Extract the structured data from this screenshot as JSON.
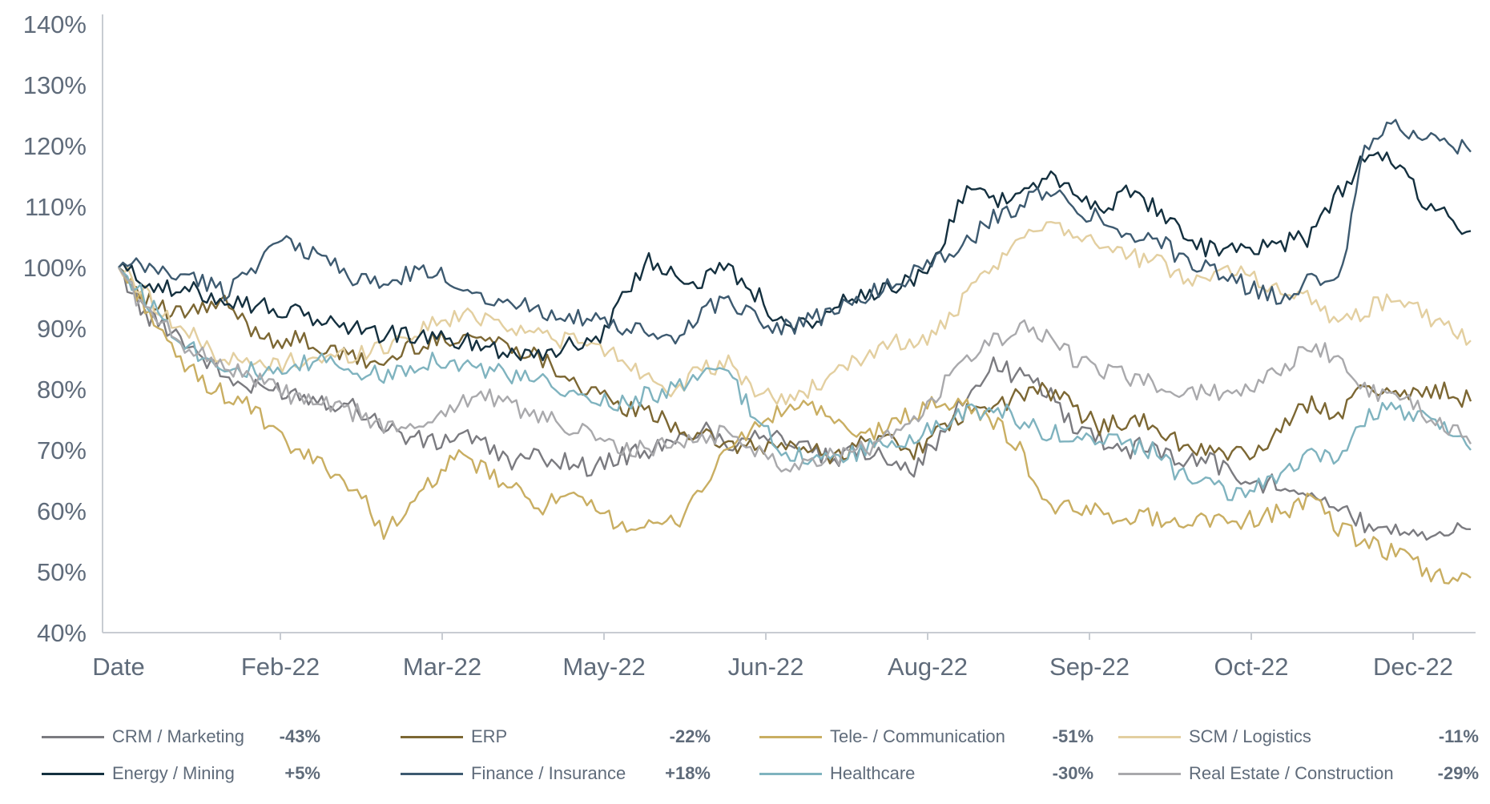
{
  "chart_data": {
    "type": "line",
    "title": "",
    "xlabel": "",
    "ylabel": "",
    "ylim": [
      40,
      140
    ],
    "yticks": [
      "40%",
      "50%",
      "60%",
      "70%",
      "80%",
      "90%",
      "100%",
      "110%",
      "120%",
      "130%",
      "140%"
    ],
    "xtick_labels": [
      "Date",
      "Feb-22",
      "Mar-22",
      "May-22",
      "Jun-22",
      "Aug-22",
      "Sep-22",
      "Oct-22",
      "Dec-22"
    ],
    "grid": false,
    "legend_position": "bottom",
    "series": [
      {
        "name": "CRM / Marketing",
        "change": "-43%",
        "color": "#7b7b80",
        "values": [
          100,
          92,
          90,
          86,
          82,
          80,
          80,
          79,
          78,
          77,
          74,
          72,
          71,
          73,
          70,
          68,
          69,
          68,
          67,
          69,
          70,
          71,
          74,
          71,
          73,
          72,
          70,
          68,
          70,
          69,
          67,
          72,
          79,
          84,
          82,
          80,
          74,
          72,
          70,
          71,
          68,
          69,
          66,
          64,
          65,
          63,
          60,
          58,
          57,
          57,
          56,
          57
        ]
      },
      {
        "name": "ERP",
        "change": "-22%",
        "color": "#7c6733",
        "values": [
          100,
          95,
          92,
          93,
          94,
          90,
          88,
          88,
          86,
          85,
          84,
          87,
          88,
          89,
          88,
          87,
          85,
          82,
          79,
          77,
          76,
          74,
          72,
          71,
          70,
          71,
          70,
          69,
          71,
          72,
          70,
          73,
          76,
          77,
          79,
          80,
          77,
          74,
          75,
          74,
          71,
          70,
          69,
          70,
          74,
          78,
          76,
          80,
          80,
          79,
          80,
          78
        ]
      },
      {
        "name": "Tele- / Communication",
        "change": "-51%",
        "color": "#c9ae62",
        "values": [
          100,
          94,
          86,
          82,
          79,
          77,
          72,
          69,
          67,
          63,
          57,
          60,
          66,
          69,
          66,
          63,
          61,
          62,
          60,
          58,
          57,
          58,
          64,
          70,
          74,
          76,
          78,
          74,
          72,
          74,
          76,
          78,
          77,
          75,
          70,
          61,
          60,
          60,
          59,
          59,
          58,
          59,
          58,
          59,
          60,
          62,
          57,
          55,
          53,
          51,
          49,
          49
        ]
      },
      {
        "name": "SCM / Logistics",
        "change": "-11%",
        "color": "#e3cfa0",
        "values": [
          100,
          96,
          91,
          88,
          85,
          84,
          84,
          85,
          85,
          86,
          87,
          89,
          91,
          92,
          92,
          90,
          89,
          88,
          87,
          85,
          82,
          80,
          83,
          84,
          80,
          78,
          80,
          82,
          85,
          88,
          87,
          90,
          95,
          100,
          104,
          108,
          106,
          104,
          102,
          101,
          99,
          98,
          100,
          98,
          96,
          95,
          91,
          93,
          95,
          93,
          90,
          88
        ]
      },
      {
        "name": "Energy / Mining",
        "change": "+5%",
        "color": "#14303f",
        "values": [
          100,
          98,
          96,
          96,
          95,
          94,
          93,
          92,
          91,
          90,
          89,
          89,
          88,
          88,
          87,
          86,
          86,
          87,
          88,
          95,
          101,
          99,
          98,
          100,
          96,
          91,
          90,
          94,
          95,
          96,
          98,
          103,
          114,
          111,
          112,
          115,
          112,
          110,
          112,
          110,
          107,
          103,
          103,
          103,
          104,
          105,
          112,
          118,
          118,
          112,
          109,
          106
        ]
      },
      {
        "name": "Finance / Insurance",
        "change": "+18%",
        "color": "#3d5a70",
        "values": [
          100,
          100,
          99,
          98,
          96,
          100,
          104,
          103,
          101,
          98,
          97,
          99,
          99,
          97,
          95,
          94,
          93,
          92,
          91,
          90,
          89,
          88,
          93,
          95,
          92,
          90,
          91,
          93,
          95,
          97,
          99,
          102,
          104,
          108,
          110,
          113,
          110,
          108,
          106,
          105,
          102,
          100,
          98,
          96,
          95,
          99,
          97,
          120,
          124,
          122,
          121,
          119
        ]
      },
      {
        "name": "Healthcare",
        "change": "-30%",
        "color": "#7fb3bf",
        "values": [
          100,
          95,
          90,
          86,
          84,
          83,
          82,
          84,
          85,
          83,
          82,
          84,
          85,
          84,
          83,
          82,
          81,
          79,
          78,
          78,
          79,
          80,
          82,
          83,
          75,
          70,
          69,
          68,
          70,
          71,
          72,
          74,
          76,
          77,
          75,
          73,
          72,
          72,
          71,
          70,
          66,
          64,
          63,
          64,
          66,
          69,
          68,
          75,
          77,
          76,
          74,
          70
        ]
      },
      {
        "name": "Real Estate / Construction",
        "change": "-29%",
        "color": "#a9a9ac",
        "values": [
          100,
          93,
          89,
          86,
          84,
          82,
          80,
          78,
          77,
          76,
          74,
          73,
          76,
          78,
          79,
          77,
          75,
          74,
          72,
          70,
          70,
          71,
          72,
          73,
          70,
          68,
          68,
          69,
          70,
          72,
          75,
          80,
          85,
          88,
          90,
          89,
          85,
          83,
          82,
          81,
          80,
          79,
          80,
          81,
          84,
          87,
          85,
          80,
          79,
          77,
          74,
          71
        ]
      }
    ]
  }
}
